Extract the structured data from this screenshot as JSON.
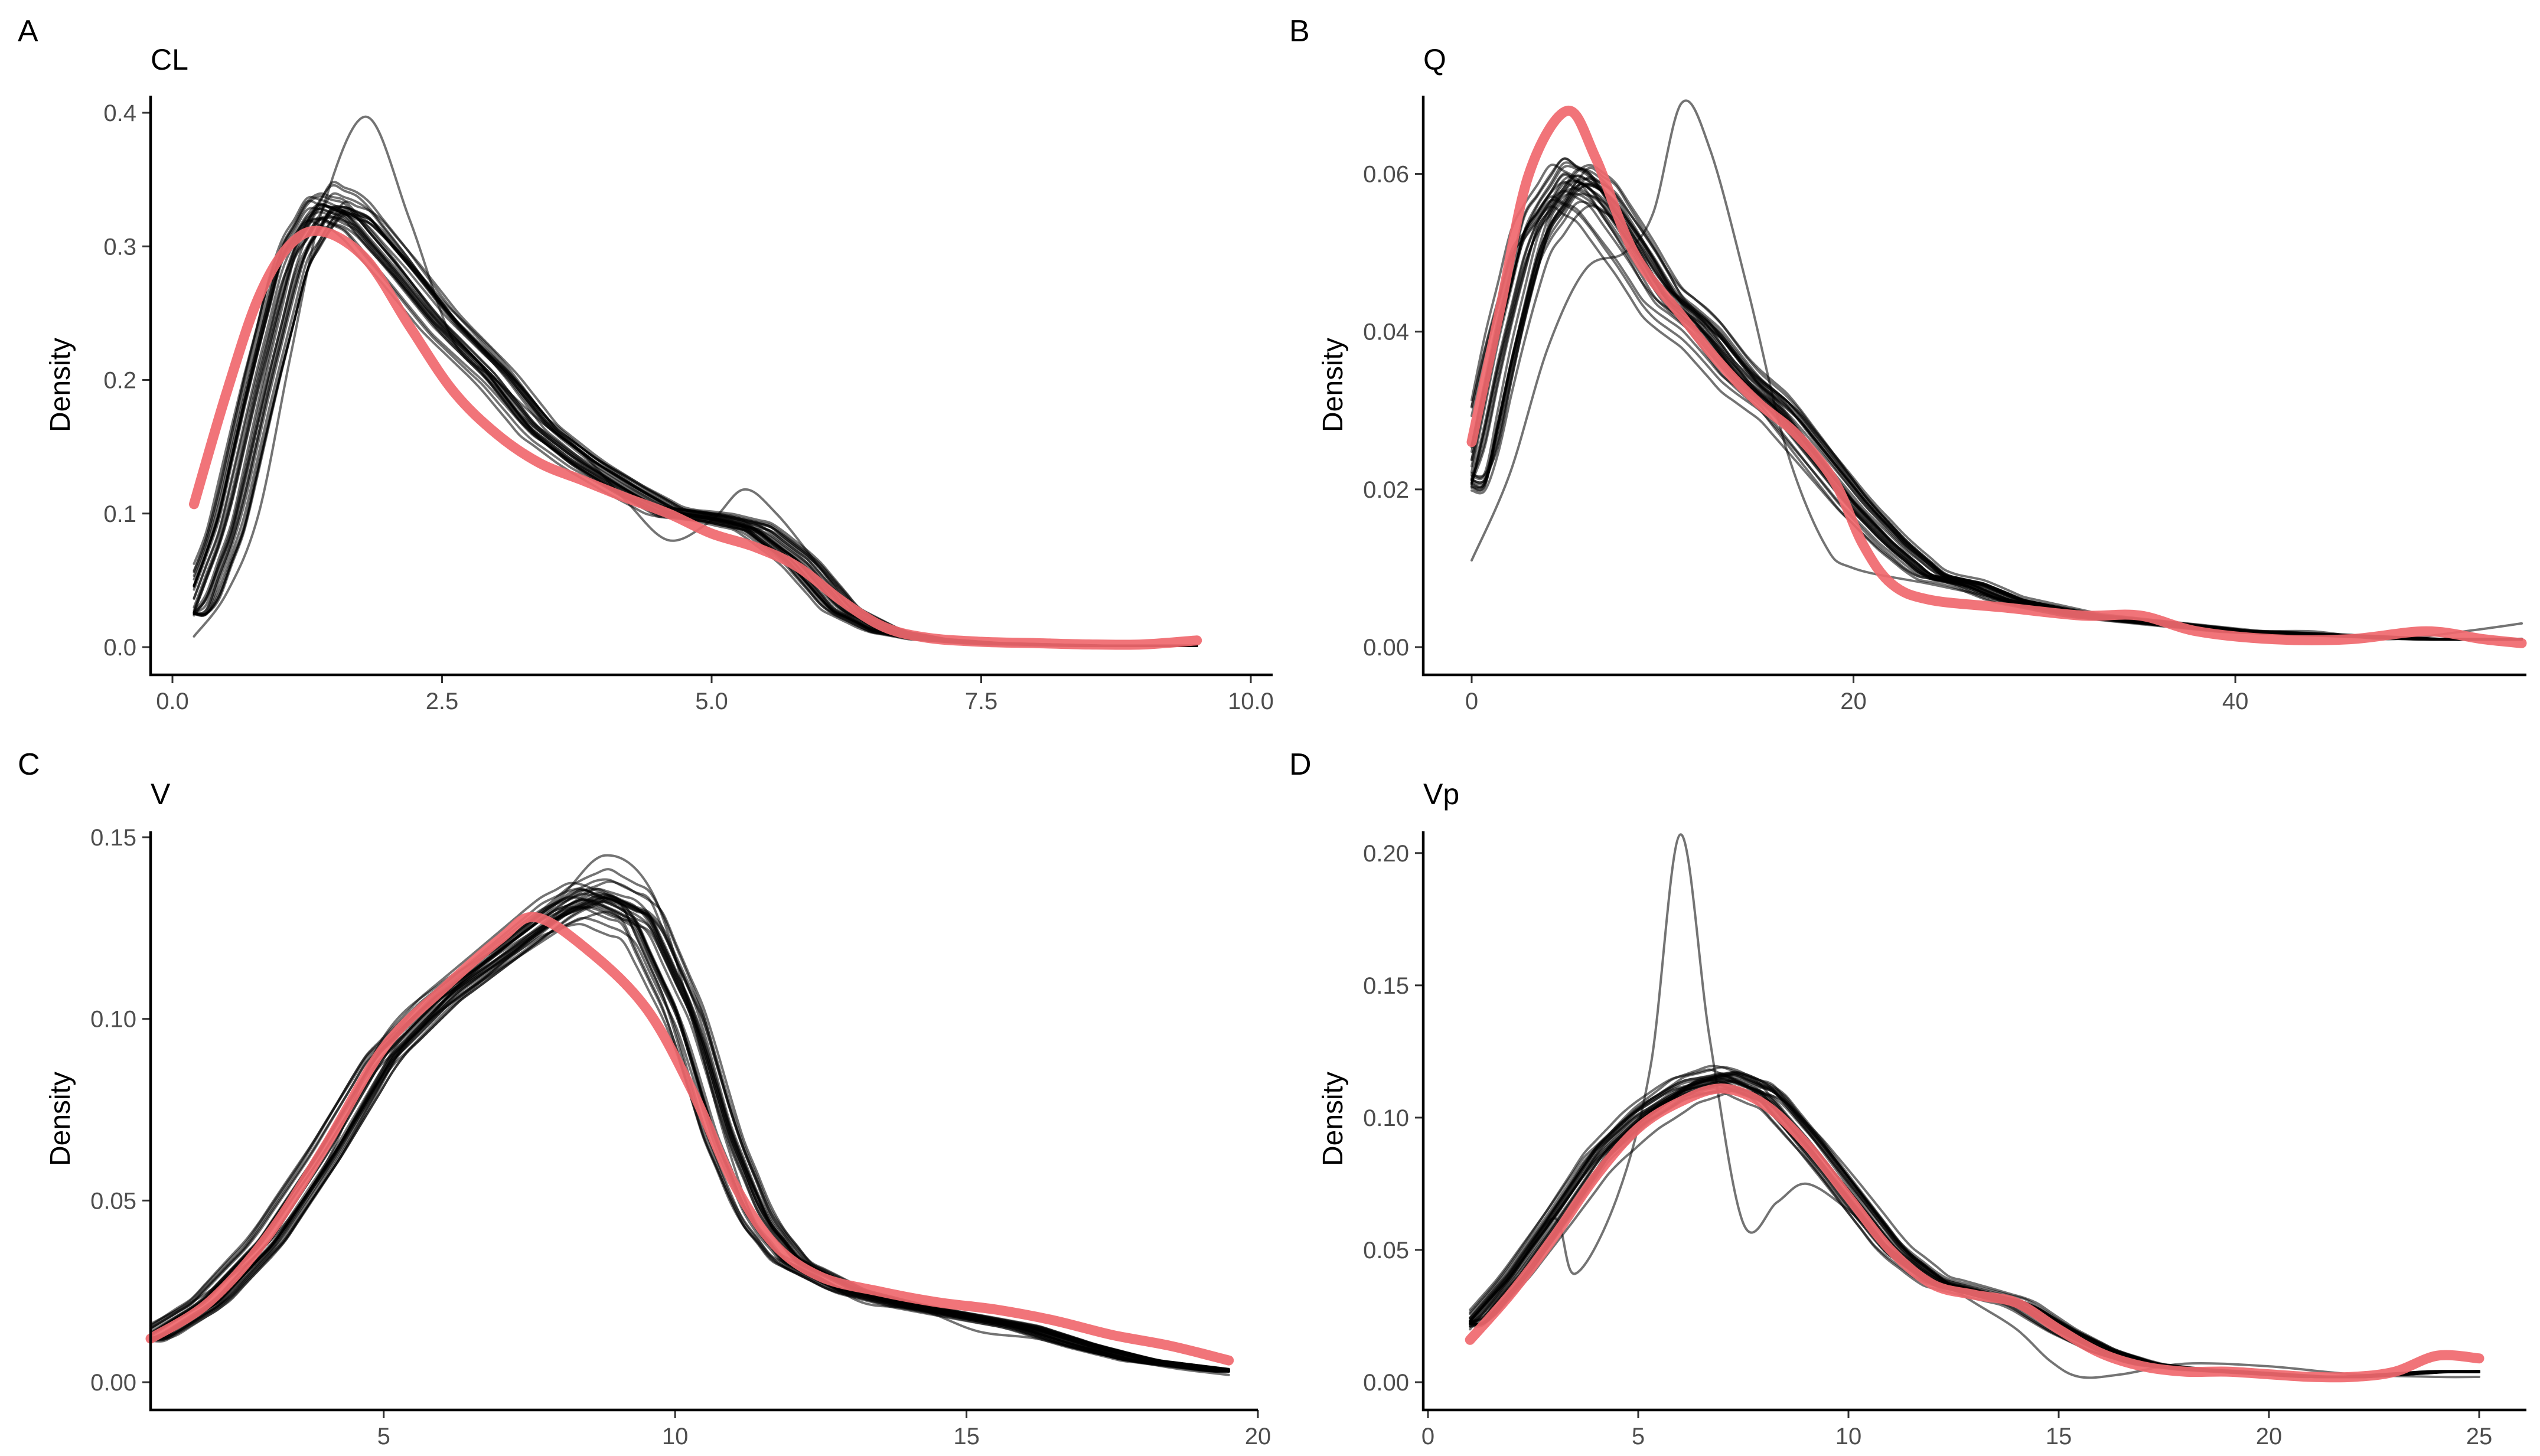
{
  "chart_data": [
    {
      "panel": "A",
      "type": "line",
      "title": "CL",
      "xlabel": "",
      "ylabel": "Density",
      "xlim": [
        0,
        10
      ],
      "ylim": [
        0,
        0.4
      ],
      "x_ticks": [
        "0.0",
        "2.5",
        "5.0",
        "7.5",
        "10.0"
      ],
      "y_ticks": [
        "0.0",
        "0.1",
        "0.2",
        "0.3",
        "0.4"
      ],
      "grid": false,
      "observed": {
        "color": "#f0686e",
        "points": [
          [
            0.2,
            0.107
          ],
          [
            0.5,
            0.19
          ],
          [
            0.8,
            0.262
          ],
          [
            1.1,
            0.302
          ],
          [
            1.4,
            0.311
          ],
          [
            1.8,
            0.29
          ],
          [
            2.2,
            0.24
          ],
          [
            2.6,
            0.192
          ],
          [
            3.0,
            0.16
          ],
          [
            3.4,
            0.138
          ],
          [
            3.8,
            0.125
          ],
          [
            4.2,
            0.112
          ],
          [
            4.6,
            0.1
          ],
          [
            5.0,
            0.085
          ],
          [
            5.4,
            0.075
          ],
          [
            5.8,
            0.06
          ],
          [
            6.2,
            0.035
          ],
          [
            6.6,
            0.015
          ],
          [
            7.0,
            0.007
          ],
          [
            7.5,
            0.004
          ],
          [
            8.0,
            0.003
          ],
          [
            8.5,
            0.002
          ],
          [
            9.0,
            0.002
          ],
          [
            9.5,
            0.005
          ]
        ]
      },
      "simulated_summary": {
        "count": 30,
        "color": "#000000",
        "mean": [
          [
            0.2,
            0.025
          ],
          [
            0.5,
            0.09
          ],
          [
            0.8,
            0.195
          ],
          [
            1.1,
            0.29
          ],
          [
            1.4,
            0.33
          ],
          [
            1.7,
            0.322
          ],
          [
            2.1,
            0.285
          ],
          [
            2.5,
            0.245
          ],
          [
            3.0,
            0.205
          ],
          [
            3.4,
            0.165
          ],
          [
            3.8,
            0.14
          ],
          [
            4.2,
            0.12
          ],
          [
            4.6,
            0.102
          ],
          [
            5.0,
            0.098
          ],
          [
            5.4,
            0.09
          ],
          [
            5.8,
            0.065
          ],
          [
            6.2,
            0.028
          ],
          [
            6.6,
            0.012
          ],
          [
            7.0,
            0.006
          ],
          [
            7.5,
            0.003
          ],
          [
            8.0,
            0.002
          ],
          [
            8.5,
            0.001
          ],
          [
            9.0,
            0.001
          ],
          [
            9.5,
            0.001
          ]
        ],
        "extreme": [
          [
            0.2,
            0.008
          ],
          [
            0.5,
            0.04
          ],
          [
            0.8,
            0.1
          ],
          [
            1.1,
            0.22
          ],
          [
            1.4,
            0.33
          ],
          [
            1.8,
            0.397
          ],
          [
            2.2,
            0.32
          ],
          [
            2.6,
            0.23
          ],
          [
            3.0,
            0.2
          ],
          [
            3.4,
            0.17
          ],
          [
            3.8,
            0.145
          ],
          [
            4.2,
            0.11
          ],
          [
            4.6,
            0.08
          ],
          [
            5.0,
            0.095
          ],
          [
            5.3,
            0.118
          ],
          [
            5.6,
            0.1
          ],
          [
            6.0,
            0.06
          ],
          [
            6.4,
            0.02
          ],
          [
            6.8,
            0.008
          ],
          [
            7.5,
            0.002
          ],
          [
            8.5,
            0.001
          ],
          [
            9.5,
            0.001
          ]
        ]
      }
    },
    {
      "panel": "B",
      "type": "line",
      "title": "Q",
      "xlabel": "",
      "ylabel": "Density",
      "xlim": [
        0,
        55
      ],
      "ylim": [
        0,
        0.07
      ],
      "x_ticks": [
        "0",
        "20",
        "40"
      ],
      "y_ticks": [
        "0.00",
        "0.02",
        "0.04",
        "0.06"
      ],
      "grid": false,
      "observed": {
        "color": "#f0686e",
        "points": [
          [
            0,
            0.026
          ],
          [
            1.5,
            0.043
          ],
          [
            3,
            0.06
          ],
          [
            5,
            0.068
          ],
          [
            6.5,
            0.062
          ],
          [
            8.5,
            0.05
          ],
          [
            11,
            0.042
          ],
          [
            13,
            0.036
          ],
          [
            15,
            0.031
          ],
          [
            17,
            0.027
          ],
          [
            19,
            0.021
          ],
          [
            20.5,
            0.013
          ],
          [
            22,
            0.008
          ],
          [
            24,
            0.006
          ],
          [
            28,
            0.005
          ],
          [
            32,
            0.004
          ],
          [
            35,
            0.004
          ],
          [
            38,
            0.002
          ],
          [
            42,
            0.001
          ],
          [
            46,
            0.001
          ],
          [
            50,
            0.002
          ],
          [
            53,
            0.001
          ],
          [
            55,
            0.0005
          ]
        ]
      },
      "simulated_summary": {
        "count": 30,
        "color": "#000000",
        "mean": [
          [
            0,
            0.021
          ],
          [
            1.5,
            0.038
          ],
          [
            3,
            0.052
          ],
          [
            5,
            0.059
          ],
          [
            6.5,
            0.057
          ],
          [
            8.5,
            0.05
          ],
          [
            10,
            0.044
          ],
          [
            12,
            0.04
          ],
          [
            14,
            0.034
          ],
          [
            16,
            0.03
          ],
          [
            18,
            0.024
          ],
          [
            20,
            0.018
          ],
          [
            22,
            0.013
          ],
          [
            24,
            0.009
          ],
          [
            26,
            0.008
          ],
          [
            28,
            0.006
          ],
          [
            32,
            0.004
          ],
          [
            36,
            0.003
          ],
          [
            40,
            0.002
          ],
          [
            45,
            0.0015
          ],
          [
            50,
            0.001
          ],
          [
            55,
            0.001
          ]
        ],
        "extreme": [
          [
            0,
            0.011
          ],
          [
            2,
            0.022
          ],
          [
            4,
            0.038
          ],
          [
            6,
            0.048
          ],
          [
            8,
            0.05
          ],
          [
            9.5,
            0.055
          ],
          [
            11,
            0.069
          ],
          [
            12.5,
            0.063
          ],
          [
            14.5,
            0.045
          ],
          [
            16.5,
            0.025
          ],
          [
            18.5,
            0.013
          ],
          [
            20,
            0.01
          ],
          [
            24,
            0.008
          ],
          [
            28,
            0.006
          ],
          [
            32,
            0.004
          ],
          [
            36,
            0.003
          ],
          [
            40,
            0.002
          ],
          [
            44,
            0.002
          ],
          [
            48,
            0.001
          ],
          [
            52,
            0.002
          ],
          [
            55,
            0.003
          ]
        ]
      }
    },
    {
      "panel": "C",
      "type": "line",
      "title": "V",
      "xlabel": "",
      "ylabel": "Density",
      "xlim": [
        1,
        20
      ],
      "ylim": [
        0,
        0.15
      ],
      "x_ticks": [
        "5",
        "10",
        "15",
        "20"
      ],
      "y_ticks": [
        "0.00",
        "0.05",
        "0.10",
        "0.15"
      ],
      "grid": false,
      "observed": {
        "color": "#f0686e",
        "points": [
          [
            1,
            0.012
          ],
          [
            2,
            0.022
          ],
          [
            3,
            0.04
          ],
          [
            4,
            0.065
          ],
          [
            5,
            0.092
          ],
          [
            6,
            0.108
          ],
          [
            7,
            0.122
          ],
          [
            7.6,
            0.128
          ],
          [
            8.5,
            0.119
          ],
          [
            9.5,
            0.103
          ],
          [
            10.3,
            0.08
          ],
          [
            11,
            0.055
          ],
          [
            11.7,
            0.038
          ],
          [
            12.5,
            0.029
          ],
          [
            13.5,
            0.025
          ],
          [
            14.5,
            0.022
          ],
          [
            15.5,
            0.02
          ],
          [
            16.5,
            0.017
          ],
          [
            17.5,
            0.013
          ],
          [
            18.5,
            0.01
          ],
          [
            19.5,
            0.006
          ]
        ]
      },
      "simulated_summary": {
        "count": 30,
        "color": "#000000",
        "mean": [
          [
            1,
            0.012
          ],
          [
            2,
            0.022
          ],
          [
            3,
            0.039
          ],
          [
            4,
            0.063
          ],
          [
            5,
            0.09
          ],
          [
            6,
            0.106
          ],
          [
            7,
            0.118
          ],
          [
            8,
            0.13
          ],
          [
            8.6,
            0.134
          ],
          [
            9.4,
            0.128
          ],
          [
            10.2,
            0.1
          ],
          [
            10.8,
            0.068
          ],
          [
            11.4,
            0.045
          ],
          [
            12,
            0.033
          ],
          [
            13,
            0.025
          ],
          [
            14,
            0.021
          ],
          [
            15,
            0.018
          ],
          [
            16,
            0.015
          ],
          [
            17,
            0.01
          ],
          [
            18,
            0.006
          ],
          [
            19,
            0.004
          ],
          [
            19.5,
            0.003
          ]
        ],
        "extreme": [
          [
            1,
            0.016
          ],
          [
            2,
            0.025
          ],
          [
            3,
            0.038
          ],
          [
            4,
            0.06
          ],
          [
            5,
            0.095
          ],
          [
            6,
            0.11
          ],
          [
            7,
            0.12
          ],
          [
            8,
            0.133
          ],
          [
            8.8,
            0.145
          ],
          [
            9.6,
            0.135
          ],
          [
            10.3,
            0.1
          ],
          [
            10.9,
            0.065
          ],
          [
            11.5,
            0.04
          ],
          [
            12.3,
            0.031
          ],
          [
            13.2,
            0.022
          ],
          [
            14.2,
            0.02
          ],
          [
            15.2,
            0.014
          ],
          [
            16.2,
            0.012
          ],
          [
            17.2,
            0.008
          ],
          [
            18.5,
            0.004
          ],
          [
            19.5,
            0.002
          ]
        ]
      }
    },
    {
      "panel": "D",
      "type": "line",
      "title": "Vp",
      "xlabel": "",
      "ylabel": "Density",
      "xlim": [
        0,
        25
      ],
      "ylim": [
        0,
        0.21
      ],
      "x_ticks": [
        "0",
        "5",
        "10",
        "15",
        "20",
        "25"
      ],
      "y_ticks": [
        "0.00",
        "0.05",
        "0.10",
        "0.15",
        "0.20"
      ],
      "grid": false,
      "observed": {
        "color": "#f0686e",
        "points": [
          [
            1,
            0.016
          ],
          [
            2,
            0.034
          ],
          [
            3,
            0.055
          ],
          [
            4,
            0.078
          ],
          [
            5,
            0.096
          ],
          [
            6,
            0.106
          ],
          [
            7,
            0.111
          ],
          [
            8,
            0.105
          ],
          [
            9,
            0.09
          ],
          [
            10,
            0.07
          ],
          [
            11,
            0.05
          ],
          [
            12,
            0.037
          ],
          [
            13,
            0.033
          ],
          [
            14,
            0.03
          ],
          [
            15,
            0.02
          ],
          [
            16,
            0.011
          ],
          [
            17,
            0.006
          ],
          [
            18,
            0.004
          ],
          [
            19,
            0.004
          ],
          [
            20,
            0.003
          ],
          [
            21,
            0.002
          ],
          [
            22,
            0.002
          ],
          [
            23,
            0.004
          ],
          [
            24,
            0.01
          ],
          [
            25,
            0.009
          ]
        ]
      },
      "simulated_summary": {
        "count": 30,
        "color": "#000000",
        "mean": [
          [
            1,
            0.022
          ],
          [
            2,
            0.04
          ],
          [
            3,
            0.062
          ],
          [
            4,
            0.085
          ],
          [
            5,
            0.1
          ],
          [
            6,
            0.11
          ],
          [
            7,
            0.114
          ],
          [
            8,
            0.108
          ],
          [
            9,
            0.09
          ],
          [
            10,
            0.07
          ],
          [
            11,
            0.05
          ],
          [
            12,
            0.038
          ],
          [
            13,
            0.034
          ],
          [
            14,
            0.03
          ],
          [
            15,
            0.02
          ],
          [
            16,
            0.012
          ],
          [
            17,
            0.007
          ],
          [
            18,
            0.005
          ],
          [
            19,
            0.004
          ],
          [
            20,
            0.003
          ],
          [
            21,
            0.002
          ],
          [
            22,
            0.002
          ],
          [
            23,
            0.003
          ],
          [
            24,
            0.004
          ],
          [
            25,
            0.004
          ]
        ],
        "extreme": [
          [
            1,
            0.02
          ],
          [
            2,
            0.04
          ],
          [
            3,
            0.062
          ],
          [
            3.5,
            0.041
          ],
          [
            4.5,
            0.07
          ],
          [
            5.3,
            0.12
          ],
          [
            6,
            0.207
          ],
          [
            6.7,
            0.13
          ],
          [
            7.5,
            0.06
          ],
          [
            8.3,
            0.068
          ],
          [
            9,
            0.075
          ],
          [
            10,
            0.065
          ],
          [
            11,
            0.05
          ],
          [
            12,
            0.04
          ],
          [
            13,
            0.03
          ],
          [
            14,
            0.02
          ],
          [
            14.8,
            0.008
          ],
          [
            15.5,
            0.002
          ],
          [
            16.5,
            0.003
          ],
          [
            18,
            0.007
          ],
          [
            20,
            0.006
          ],
          [
            22,
            0.003
          ],
          [
            24,
            0.002
          ],
          [
            25,
            0.002
          ]
        ]
      }
    }
  ]
}
